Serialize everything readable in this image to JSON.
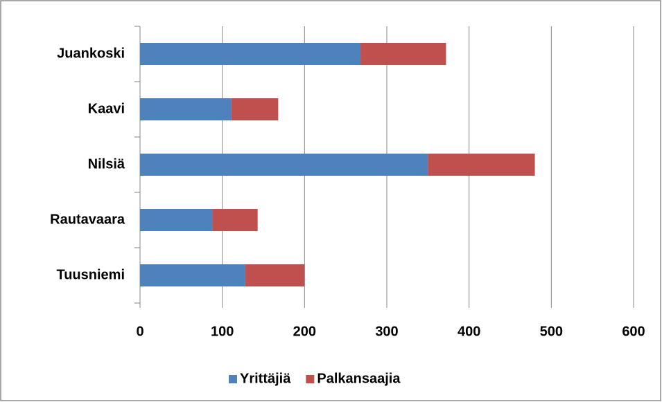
{
  "chart_data": {
    "type": "bar",
    "orientation": "horizontal",
    "stacked": true,
    "categories": [
      "Juankoski",
      "Kaavi",
      "Nilsiä",
      "Rautavaara",
      "Tuusniemi"
    ],
    "series": [
      {
        "name": "Yrittäjiä",
        "color": "#4f81bd",
        "values": [
          268,
          111,
          350,
          88,
          128
        ]
      },
      {
        "name": "Palkansaajia",
        "color": "#c0504d",
        "values": [
          104,
          57,
          130,
          55,
          72
        ]
      }
    ],
    "xlim": [
      0,
      600
    ],
    "xticks": [
      0,
      100,
      200,
      300,
      400,
      500,
      600
    ],
    "grid": true,
    "legend": "bottom"
  }
}
